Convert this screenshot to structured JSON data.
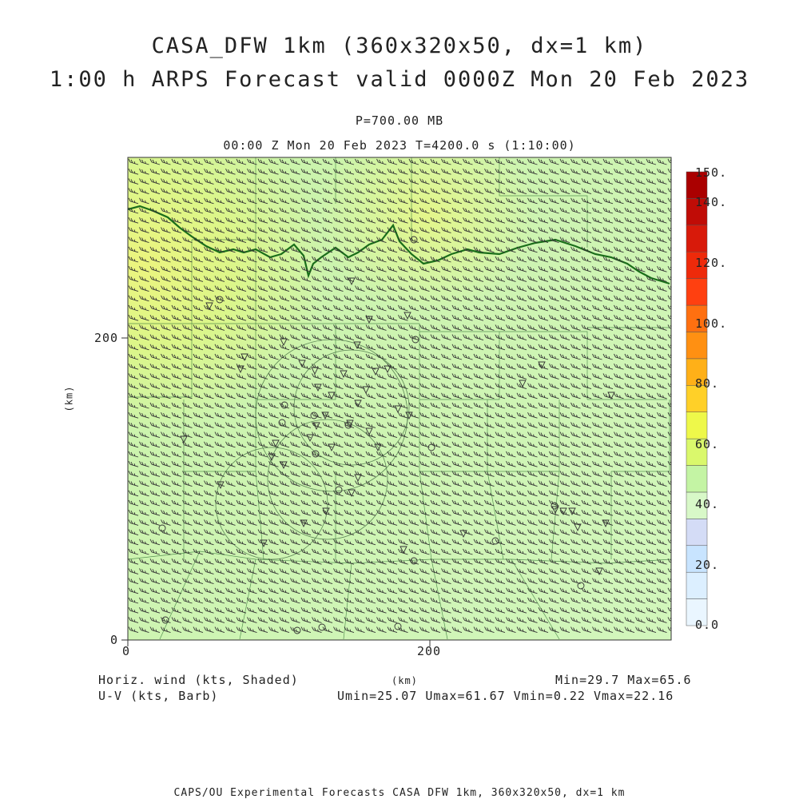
{
  "title": {
    "line1": "CASA_DFW 1km (360x320x50, dx=1 km)",
    "line2": "1:00 h ARPS Forecast valid 0000Z Mon 20 Feb 2023"
  },
  "subtitle": {
    "level": "P=700.00 MB",
    "time": "00:00 Z Mon 20 Feb 2023   T=4200.0 s (1:10:00)"
  },
  "axes": {
    "x_ticks": [
      "0",
      "200"
    ],
    "y_ticks": [
      "0",
      "200"
    ],
    "xlabel": "(km)",
    "ylabel": "(km)"
  },
  "colorbar": {
    "labels": [
      "0.0",
      "20.",
      "40.",
      "60.",
      "80.",
      "100.",
      "120.",
      "140.",
      "150."
    ],
    "colors": [
      "#eaf6ff",
      "#dcefff",
      "#c8e4ff",
      "#d4dcf6",
      "#d8f8c8",
      "#c4f4a4",
      "#daf86c",
      "#eef84a",
      "#ffd028",
      "#ffb018",
      "#ff9012",
      "#ff7010",
      "#ff4010",
      "#ee2a0a",
      "#d81a0a",
      "#c00c06",
      "#aa0000"
    ]
  },
  "legend": {
    "field": "Horiz. wind (kts, Shaded)",
    "barb": "U-V (kts, Barb)",
    "minmax": "Min=29.7 Max=65.6",
    "uv": "Umin=25.07 Umax=61.67 Vmin=0.22 Vmax=22.16"
  },
  "footer": "CAPS/OU Experimental Forecasts  CASA DFW 1km, 360x320x50, dx=1 km",
  "chart_data": {
    "type": "heatmap",
    "variable": "Horiz. wind (kts, Shaded)",
    "units": "kts",
    "min": 29.7,
    "max": 65.6,
    "xlim": [
      0,
      360
    ],
    "ylim": [
      0,
      320
    ],
    "colorbar_range": [
      0,
      150
    ],
    "colorbar_step": 10,
    "barbs": {
      "umin": 25.07,
      "umax": 61.67,
      "vmin": 0.22,
      "vmax": 22.16
    },
    "colors": {
      "field_base": "#d6f7bf",
      "field_mid": "#c9f3a5",
      "field_max": "#e2f78c",
      "red_river": "#1a6e1a",
      "county_lines": "#3a7a3a"
    }
  }
}
